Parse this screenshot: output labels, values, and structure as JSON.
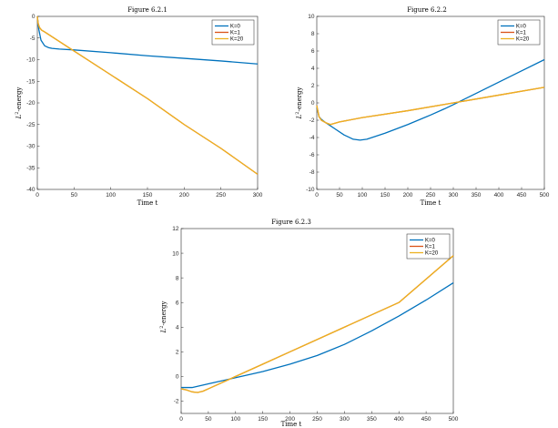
{
  "colors": {
    "K0": "#0072BD",
    "K1": "#D95319",
    "K20": "#EDB120",
    "axis": "#262626"
  },
  "chart_data": [
    {
      "type": "line",
      "title": "Figure 6.2.1",
      "xlabel": "Time t",
      "ylabel_sup": "2",
      "ylabel": "-energy",
      "xlim": [
        0,
        300
      ],
      "ylim": [
        -40,
        0
      ],
      "xticks": [
        0,
        50,
        100,
        150,
        200,
        250,
        300
      ],
      "yticks": [
        -40,
        -35,
        -30,
        -25,
        -20,
        -15,
        -10,
        -5,
        0
      ],
      "legend_position": "top-right",
      "series": [
        {
          "name": "K=0",
          "color": "#0072BD",
          "x": [
            0,
            2,
            5,
            10,
            15,
            20,
            30,
            50,
            100,
            150,
            200,
            250,
            300
          ],
          "y": [
            0,
            -3,
            -5.5,
            -6.8,
            -7.2,
            -7.4,
            -7.55,
            -7.75,
            -8.4,
            -9.1,
            -9.7,
            -10.3,
            -11
          ]
        },
        {
          "name": "K=1",
          "color": "#D95319",
          "x": [
            0,
            1,
            3,
            6,
            10,
            20,
            40,
            100,
            150,
            200,
            250,
            300
          ],
          "y": [
            0,
            -1.5,
            -2.6,
            -3.2,
            -3.6,
            -4.7,
            -6.9,
            -13.5,
            -19,
            -25,
            -30.5,
            -36.5
          ]
        },
        {
          "name": "K=20",
          "color": "#EDB120",
          "x": [
            0,
            1,
            3,
            6,
            10,
            20,
            40,
            100,
            150,
            200,
            250,
            300
          ],
          "y": [
            0,
            -1.5,
            -2.6,
            -3.2,
            -3.6,
            -4.7,
            -6.9,
            -13.5,
            -19,
            -25,
            -30.5,
            -36.5
          ]
        }
      ]
    },
    {
      "type": "line",
      "title": "Figure 6.2.2",
      "xlabel": "Time t",
      "ylabel_sup": "2",
      "ylabel": "-energy",
      "xlim": [
        0,
        500
      ],
      "ylim": [
        -10,
        10
      ],
      "xticks": [
        0,
        50,
        100,
        150,
        200,
        250,
        300,
        350,
        400,
        450,
        500
      ],
      "yticks": [
        -10,
        -8,
        -6,
        -4,
        -2,
        0,
        2,
        4,
        6,
        8,
        10
      ],
      "legend_position": "top-right",
      "series": [
        {
          "name": "K=0",
          "color": "#0072BD",
          "x": [
            0,
            5,
            10,
            20,
            40,
            60,
            80,
            95,
            110,
            150,
            200,
            250,
            280,
            300,
            350,
            400,
            450,
            500
          ],
          "y": [
            -0.5,
            -1.6,
            -1.9,
            -2.3,
            -3.0,
            -3.7,
            -4.2,
            -4.3,
            -4.2,
            -3.5,
            -2.5,
            -1.4,
            -0.7,
            -0.2,
            1.1,
            2.4,
            3.7,
            5.0
          ]
        },
        {
          "name": "K=1",
          "color": "#D95319",
          "x": [
            0,
            5,
            10,
            20,
            30,
            50,
            100,
            200,
            300,
            400,
            500
          ],
          "y": [
            -0.3,
            -1.6,
            -2.0,
            -2.3,
            -2.5,
            -2.2,
            -1.7,
            -0.9,
            0,
            0.9,
            1.8
          ]
        },
        {
          "name": "K=20",
          "color": "#EDB120",
          "x": [
            0,
            5,
            10,
            20,
            30,
            50,
            100,
            200,
            300,
            400,
            500
          ],
          "y": [
            -0.3,
            -1.6,
            -2.0,
            -2.3,
            -2.5,
            -2.2,
            -1.7,
            -0.9,
            0,
            0.9,
            1.8
          ]
        }
      ]
    },
    {
      "type": "line",
      "title": "Figure 6.2.3",
      "xlabel": "Time t",
      "ylabel_sup": "2",
      "ylabel": "-energy",
      "xlim": [
        0,
        500
      ],
      "ylim": [
        -3,
        12
      ],
      "xticks": [
        0,
        50,
        100,
        150,
        200,
        250,
        300,
        350,
        400,
        450,
        500
      ],
      "yticks": [
        -2,
        0,
        2,
        4,
        6,
        8,
        10,
        12
      ],
      "legend_position": "top-right",
      "series": [
        {
          "name": "K=0",
          "color": "#0072BD",
          "x": [
            0,
            20,
            50,
            100,
            150,
            200,
            250,
            300,
            350,
            400,
            450,
            500
          ],
          "y": [
            -0.9,
            -0.9,
            -0.6,
            -0.1,
            0.4,
            1.0,
            1.7,
            2.6,
            3.7,
            4.9,
            6.2,
            7.6
          ]
        },
        {
          "name": "K=1",
          "color": "#D95319",
          "x": [
            0,
            10,
            20,
            30,
            40,
            50,
            75,
            100,
            150,
            200,
            300,
            400,
            500
          ],
          "y": [
            -1.0,
            -1.1,
            -1.25,
            -1.3,
            -1.2,
            -1.0,
            -0.5,
            0,
            1.0,
            2.0,
            4.0,
            6.0,
            9.8
          ]
        },
        {
          "name": "K=20",
          "color": "#EDB120",
          "x": [
            0,
            10,
            20,
            30,
            40,
            50,
            75,
            100,
            150,
            200,
            300,
            400,
            500
          ],
          "y": [
            -1.0,
            -1.1,
            -1.25,
            -1.3,
            -1.2,
            -1.0,
            -0.5,
            0,
            1.0,
            2.0,
            4.0,
            6.0,
            9.8
          ]
        }
      ]
    }
  ]
}
